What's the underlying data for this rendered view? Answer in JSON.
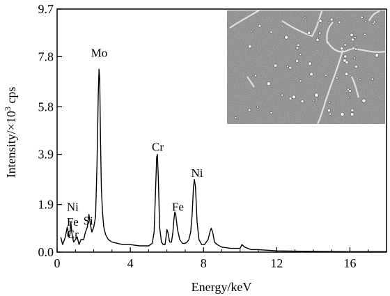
{
  "chart_data": {
    "type": "line",
    "xlabel": "Energy/keV",
    "ylabel_main": "Intensity/",
    "ylabel_times": "×",
    "ylabel_base": "10",
    "ylabel_exp": "3",
    "ylabel_unit": " cps",
    "xlim": [
      0,
      18
    ],
    "ylim": [
      0,
      9.7
    ],
    "x_ticks": [
      0,
      4,
      8,
      12,
      16
    ],
    "x_tick_labels": [
      "0",
      "4",
      "8",
      "12",
      "16"
    ],
    "y_ticks": [
      0.0,
      1.9,
      3.9,
      5.8,
      7.8,
      9.7
    ],
    "y_tick_labels": [
      "0.0",
      "1.9",
      "3.9",
      "5.8",
      "7.8",
      "9.7"
    ],
    "grid": false,
    "series": [
      {
        "x": [
          0.2,
          0.3,
          0.45,
          0.55,
          0.65,
          0.7,
          0.75,
          0.8,
          0.85,
          0.9,
          1.0,
          1.1,
          1.2,
          1.3,
          1.45,
          1.55,
          1.65,
          1.74,
          1.82,
          1.9,
          2.0,
          2.1,
          2.18,
          2.25,
          2.29,
          2.33,
          2.37,
          2.42,
          2.48,
          2.55,
          2.65,
          2.8,
          3.0,
          3.3,
          3.6,
          4.0,
          4.5,
          5.0,
          5.2,
          5.3,
          5.38,
          5.44,
          5.48,
          5.53,
          5.6,
          5.7,
          5.8,
          5.9,
          5.95,
          6.0,
          6.05,
          6.15,
          6.25,
          6.33,
          6.38,
          6.43,
          6.48,
          6.58,
          6.7,
          6.85,
          7.0,
          7.1,
          7.2,
          7.3,
          7.38,
          7.45,
          7.5,
          7.56,
          7.65,
          7.75,
          7.9,
          8.05,
          8.25,
          8.35,
          8.42,
          8.5,
          8.6,
          8.75,
          9.0,
          9.5,
          10.0,
          10.1,
          10.25,
          10.6,
          11.0,
          12.0,
          14.0,
          16.0,
          17.0,
          18.0
        ],
        "y": [
          0.6,
          0.3,
          0.6,
          1.0,
          0.6,
          0.7,
          1.2,
          0.8,
          0.6,
          0.4,
          0.5,
          0.6,
          0.3,
          0.5,
          0.5,
          0.8,
          1.0,
          1.5,
          1.1,
          0.8,
          1.0,
          1.4,
          3.5,
          6.3,
          7.3,
          6.9,
          4.5,
          2.5,
          1.6,
          1.0,
          0.7,
          0.5,
          0.4,
          0.35,
          0.3,
          0.3,
          0.25,
          0.25,
          0.35,
          0.8,
          2.5,
          3.8,
          3.9,
          3.0,
          1.0,
          0.4,
          0.3,
          0.3,
          0.6,
          0.9,
          0.8,
          0.4,
          0.4,
          0.8,
          1.3,
          1.6,
          1.5,
          0.9,
          0.5,
          0.35,
          0.35,
          0.4,
          0.5,
          0.8,
          1.5,
          2.6,
          2.9,
          2.6,
          1.2,
          0.5,
          0.3,
          0.3,
          0.5,
          0.8,
          0.95,
          0.8,
          0.4,
          0.3,
          0.2,
          0.15,
          0.15,
          0.3,
          0.2,
          0.1,
          0.1,
          0.05,
          0.03,
          0.02,
          0.02,
          0.02
        ]
      }
    ],
    "annotations": [
      {
        "text": "Mo",
        "x": 2.3,
        "y": 7.8
      },
      {
        "text": "Cr",
        "x": 5.5,
        "y": 4.05
      },
      {
        "text": "Fe",
        "x": 6.6,
        "y": 1.65
      },
      {
        "text": "Ni",
        "x": 7.65,
        "y": 3.0
      },
      {
        "text": "Si",
        "x": 1.7,
        "y": 1.1
      },
      {
        "text": "Ni",
        "x": 0.85,
        "y": 1.65
      },
      {
        "text": "Fe",
        "x": 0.85,
        "y": 1.05
      },
      {
        "text": "Cr",
        "x": 0.85,
        "y": 0.55
      }
    ],
    "inset": {
      "description_icon": "micrograph-inset"
    }
  }
}
